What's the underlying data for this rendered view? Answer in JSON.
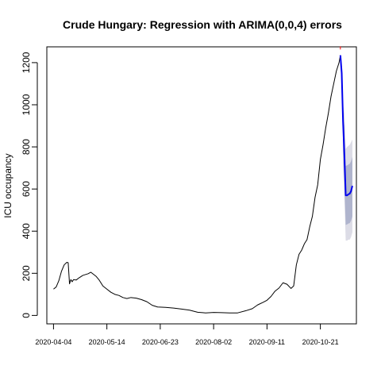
{
  "chart_data": {
    "type": "line",
    "title": "Crude Hungary: Regression with ARIMA(0,0,4) errors",
    "xlabel": "",
    "ylabel": "ICU occupancy",
    "x_ticks": [
      "2020-04-04",
      "2020-05-14",
      "2020-06-23",
      "2020-08-02",
      "2020-09-11",
      "2020-10-21"
    ],
    "y_ticks": [
      0,
      200,
      400,
      600,
      800,
      1000,
      1200
    ],
    "x_range": [
      "2020-03-30",
      "2020-11-17"
    ],
    "y_range": [
      -40,
      1275
    ],
    "grid": false,
    "series": [
      {
        "role": "observed",
        "color": "#000000",
        "points": [
          [
            "2020-04-04",
            125
          ],
          [
            "2020-04-06",
            135
          ],
          [
            "2020-04-08",
            165
          ],
          [
            "2020-04-10",
            210
          ],
          [
            "2020-04-12",
            240
          ],
          [
            "2020-04-14",
            252
          ],
          [
            "2020-04-15",
            250
          ],
          [
            "2020-04-16",
            150
          ],
          [
            "2020-04-17",
            170
          ],
          [
            "2020-04-18",
            160
          ],
          [
            "2020-04-19",
            170
          ],
          [
            "2020-04-21",
            168
          ],
          [
            "2020-04-23",
            178
          ],
          [
            "2020-04-26",
            190
          ],
          [
            "2020-04-30",
            198
          ],
          [
            "2020-05-02",
            205
          ],
          [
            "2020-05-04",
            195
          ],
          [
            "2020-05-06",
            185
          ],
          [
            "2020-05-08",
            170
          ],
          [
            "2020-05-11",
            140
          ],
          [
            "2020-05-14",
            125
          ],
          [
            "2020-05-17",
            110
          ],
          [
            "2020-05-20",
            100
          ],
          [
            "2020-05-23",
            95
          ],
          [
            "2020-05-26",
            85
          ],
          [
            "2020-05-29",
            80
          ],
          [
            "2020-06-01",
            85
          ],
          [
            "2020-06-05",
            82
          ],
          [
            "2020-06-09",
            75
          ],
          [
            "2020-06-13",
            65
          ],
          [
            "2020-06-17",
            48
          ],
          [
            "2020-06-21",
            40
          ],
          [
            "2020-06-27",
            38
          ],
          [
            "2020-07-03",
            35
          ],
          [
            "2020-07-09",
            30
          ],
          [
            "2020-07-15",
            25
          ],
          [
            "2020-07-21",
            15
          ],
          [
            "2020-07-27",
            12
          ],
          [
            "2020-08-02",
            14
          ],
          [
            "2020-08-08",
            13
          ],
          [
            "2020-08-14",
            12
          ],
          [
            "2020-08-20",
            12
          ],
          [
            "2020-08-26",
            22
          ],
          [
            "2020-08-31",
            32
          ],
          [
            "2020-09-04",
            50
          ],
          [
            "2020-09-08",
            62
          ],
          [
            "2020-09-11",
            72
          ],
          [
            "2020-09-14",
            90
          ],
          [
            "2020-09-17",
            115
          ],
          [
            "2020-09-20",
            130
          ],
          [
            "2020-09-23",
            155
          ],
          [
            "2020-09-26",
            148
          ],
          [
            "2020-09-29",
            128
          ],
          [
            "2020-10-01",
            140
          ],
          [
            "2020-10-03",
            240
          ],
          [
            "2020-10-05",
            290
          ],
          [
            "2020-10-07",
            310
          ],
          [
            "2020-10-09",
            340
          ],
          [
            "2020-10-11",
            360
          ],
          [
            "2020-10-13",
            420
          ],
          [
            "2020-10-15",
            470
          ],
          [
            "2020-10-17",
            560
          ],
          [
            "2020-10-19",
            620
          ],
          [
            "2020-10-21",
            740
          ],
          [
            "2020-10-23",
            810
          ],
          [
            "2020-10-25",
            890
          ],
          [
            "2020-10-27",
            960
          ],
          [
            "2020-10-29",
            1040
          ],
          [
            "2020-10-31",
            1100
          ],
          [
            "2020-11-02",
            1160
          ],
          [
            "2020-11-04",
            1200
          ],
          [
            "2020-11-05",
            1235
          ]
        ]
      },
      {
        "role": "forecast",
        "color": "#0000ee",
        "points": [
          [
            "2020-11-05",
            1235
          ],
          [
            "2020-11-06",
            1150
          ],
          [
            "2020-11-07",
            920
          ],
          [
            "2020-11-08",
            760
          ],
          [
            "2020-11-09",
            570
          ],
          [
            "2020-11-10",
            570
          ],
          [
            "2020-11-11",
            575
          ],
          [
            "2020-11-12",
            578
          ],
          [
            "2020-11-13",
            590
          ],
          [
            "2020-11-14",
            615
          ]
        ]
      }
    ],
    "intervals": [
      {
        "level": "95%",
        "color": "#dcdce6",
        "points": [
          [
            "2020-11-07",
            720,
            1000
          ],
          [
            "2020-11-08",
            560,
            960
          ],
          [
            "2020-11-09",
            355,
            790
          ],
          [
            "2020-11-10",
            355,
            800
          ],
          [
            "2020-11-11",
            360,
            805
          ],
          [
            "2020-11-12",
            360,
            810
          ],
          [
            "2020-11-13",
            372,
            822
          ],
          [
            "2020-11-14",
            395,
            835
          ]
        ]
      },
      {
        "level": "80%",
        "color": "#afb4cd",
        "points": [
          [
            "2020-11-07",
            780,
            940
          ],
          [
            "2020-11-08",
            620,
            900
          ],
          [
            "2020-11-09",
            430,
            710
          ],
          [
            "2020-11-10",
            432,
            712
          ],
          [
            "2020-11-11",
            436,
            716
          ],
          [
            "2020-11-12",
            438,
            720
          ],
          [
            "2020-11-13",
            450,
            732
          ],
          [
            "2020-11-14",
            470,
            752
          ]
        ]
      }
    ],
    "actual_marker": {
      "date": "2020-11-05",
      "value": 1270,
      "color": "#ff0000"
    }
  }
}
